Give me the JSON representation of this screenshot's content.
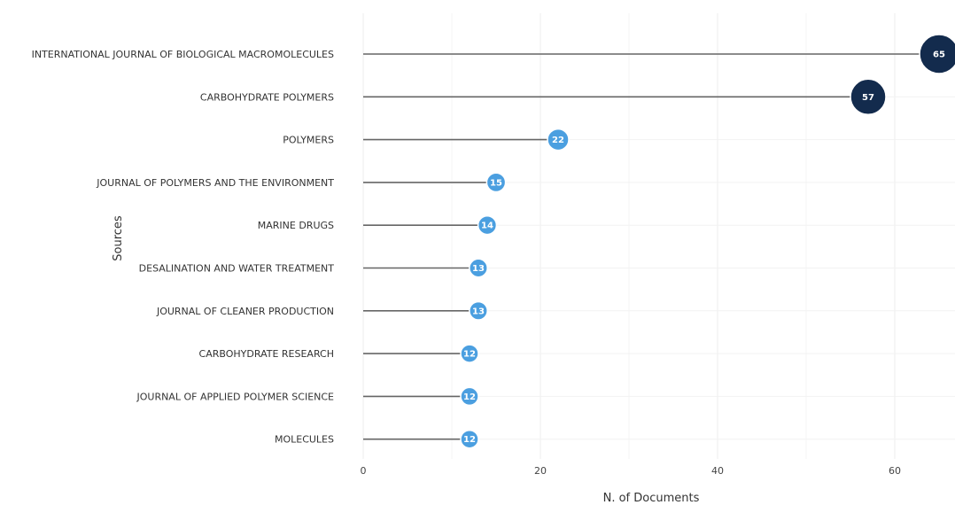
{
  "chart_data": {
    "type": "lollipop",
    "orientation": "horizontal",
    "xlabel": "N. of Documents",
    "ylabel": "Sources",
    "xlim": [
      0,
      66
    ],
    "xticks": [
      0,
      20,
      40,
      60
    ],
    "grid": true,
    "legend": "none",
    "categories": [
      "INTERNATIONAL JOURNAL OF BIOLOGICAL MACROMOLECULES",
      "CARBOHYDRATE POLYMERS",
      "POLYMERS",
      "JOURNAL OF POLYMERS AND THE ENVIRONMENT",
      "MARINE DRUGS",
      "DESALINATION AND WATER TREATMENT",
      "JOURNAL OF CLEANER PRODUCTION",
      "CARBOHYDRATE RESEARCH",
      "JOURNAL OF APPLIED POLYMER SCIENCE",
      "MOLECULES"
    ],
    "values": [
      65,
      57,
      22,
      15,
      14,
      13,
      13,
      12,
      12,
      12
    ],
    "colors": {
      "high": "#132b4d",
      "low": "#4b9fe0",
      "stem": "#666666",
      "grid": "#eeeeee",
      "bubble_border": "#ffffff"
    }
  }
}
